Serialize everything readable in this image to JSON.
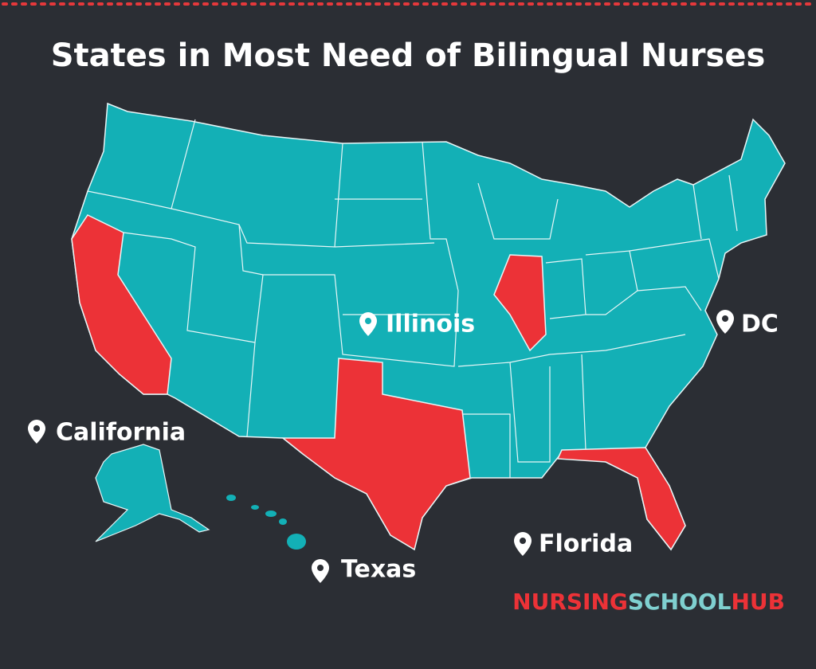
{
  "title": "States in Most Need of Bilingual Nurses",
  "labels": [
    "Illinois",
    "DC",
    "California",
    "Texas",
    "Florida"
  ],
  "brand": {
    "part1": "NURSING",
    "part2": "SCHOOL",
    "part3": "HUB"
  }
}
